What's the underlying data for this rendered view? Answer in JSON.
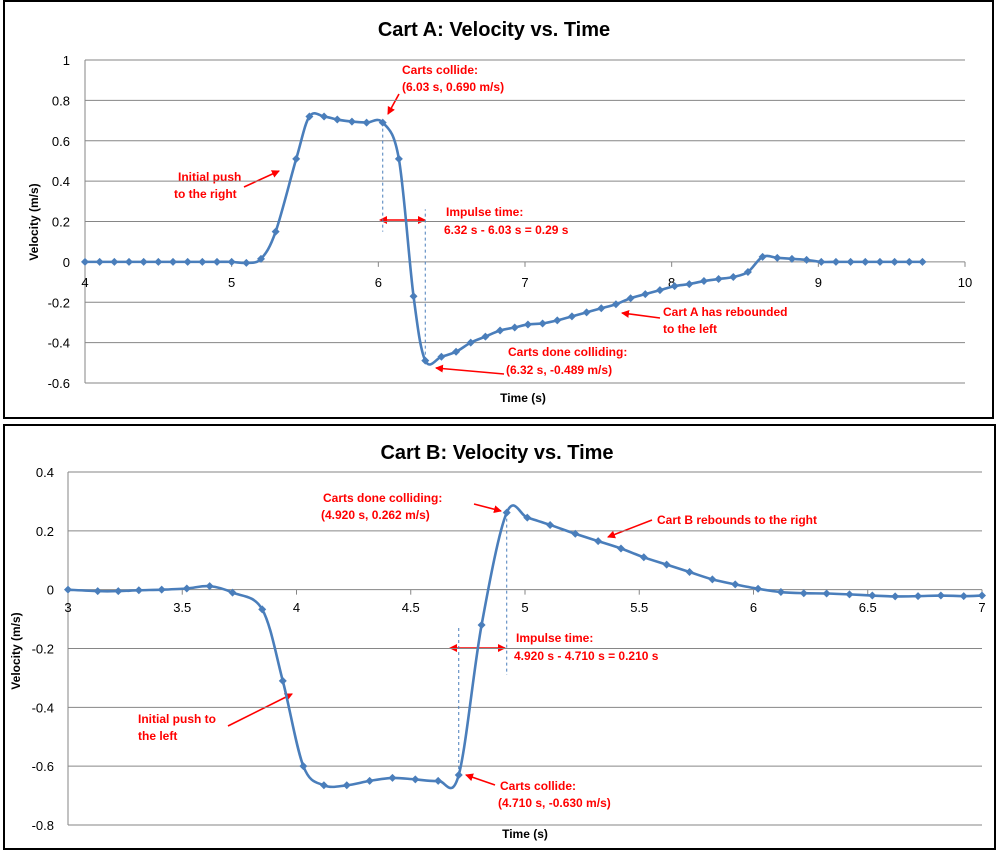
{
  "chart_data": [
    {
      "type": "line",
      "title": "Cart A: Velocity vs. Time",
      "xlabel": "Time (s)",
      "ylabel": "Velocity (m/s)",
      "xlim": [
        4,
        10
      ],
      "ylim": [
        -0.6,
        1
      ],
      "xticks": [
        "4",
        "5",
        "6",
        "7",
        "8",
        "9",
        "10"
      ],
      "yticks": [
        "1",
        "0.8",
        "0.6",
        "0.4",
        "0.2",
        "0",
        "-0.2",
        "-0.4",
        "-0.6"
      ],
      "grid": "horizontal",
      "series_color": "#4a7ebb",
      "marker": "diamond",
      "x": [
        4.0,
        4.1,
        4.2,
        4.3,
        4.4,
        4.5,
        4.6,
        4.7,
        4.8,
        4.9,
        5.0,
        5.1,
        5.2,
        5.3,
        5.44,
        5.53,
        5.63,
        5.72,
        5.82,
        5.92,
        6.03,
        6.14,
        6.24,
        6.32,
        6.43,
        6.53,
        6.63,
        6.73,
        6.83,
        6.93,
        7.02,
        7.12,
        7.22,
        7.32,
        7.42,
        7.52,
        7.62,
        7.72,
        7.82,
        7.92,
        8.02,
        8.12,
        8.22,
        8.32,
        8.42,
        8.52,
        8.62,
        8.72,
        8.82,
        8.92,
        9.02,
        9.12,
        9.22,
        9.32,
        9.42,
        9.52,
        9.62,
        9.71
      ],
      "y": [
        0.0,
        0.0,
        0.0,
        0.0,
        0.0,
        0.0,
        0.0,
        0.0,
        0.0,
        0.0,
        0.0,
        -0.005,
        0.015,
        0.15,
        0.51,
        0.72,
        0.72,
        0.705,
        0.695,
        0.69,
        0.69,
        0.51,
        -0.17,
        -0.489,
        -0.47,
        -0.445,
        -0.4,
        -0.37,
        -0.34,
        -0.325,
        -0.31,
        -0.305,
        -0.29,
        -0.27,
        -0.25,
        -0.23,
        -0.21,
        -0.18,
        -0.16,
        -0.14,
        -0.12,
        -0.11,
        -0.095,
        -0.085,
        -0.075,
        -0.05,
        0.025,
        0.02,
        0.015,
        0.01,
        0.0,
        0.0,
        0.0,
        0.0,
        0.0,
        0.0,
        0.0,
        0.0
      ],
      "annotations": [
        {
          "id": "collide",
          "lines": [
            "Carts collide:",
            "(6.03 s, 0.690 m/s)"
          ]
        },
        {
          "id": "push",
          "lines": [
            "Initial push",
            "to the right"
          ]
        },
        {
          "id": "impulse",
          "lines": [
            "Impulse time:",
            "6.32 s - 6.03 s = 0.29 s"
          ]
        },
        {
          "id": "rebound",
          "lines": [
            "Cart A has rebounded",
            "to the left"
          ]
        },
        {
          "id": "done",
          "lines": [
            "Carts done colliding:",
            "(6.32 s, -0.489 m/s)"
          ]
        }
      ]
    },
    {
      "type": "line",
      "title": "Cart B: Velocity vs. Time",
      "xlabel": "Time (s)",
      "ylabel": "Velocity (m/s)",
      "xlim": [
        3,
        7
      ],
      "ylim": [
        -0.8,
        0.4
      ],
      "xticks": [
        "3",
        "3.5",
        "4",
        "4.5",
        "5",
        "5.5",
        "6",
        "6.5",
        "7"
      ],
      "yticks": [
        "0.4",
        "0.2",
        "0",
        "-0.2",
        "-0.4",
        "-0.6",
        "-0.8"
      ],
      "grid": "horizontal",
      "series_color": "#4a7ebb",
      "marker": "diamond",
      "x": [
        3.0,
        3.13,
        3.22,
        3.31,
        3.41,
        3.52,
        3.62,
        3.72,
        3.85,
        3.94,
        4.03,
        4.12,
        4.22,
        4.32,
        4.42,
        4.52,
        4.62,
        4.71,
        4.81,
        4.92,
        5.01,
        5.11,
        5.22,
        5.32,
        5.42,
        5.52,
        5.62,
        5.72,
        5.82,
        5.92,
        6.02,
        6.12,
        6.22,
        6.32,
        6.42,
        6.52,
        6.62,
        6.72,
        6.82,
        6.92,
        7.0
      ],
      "y": [
        0.0,
        -0.005,
        -0.005,
        -0.002,
        0.0,
        0.004,
        0.012,
        -0.01,
        -0.067,
        -0.31,
        -0.6,
        -0.665,
        -0.665,
        -0.65,
        -0.64,
        -0.645,
        -0.65,
        -0.63,
        -0.12,
        0.262,
        0.245,
        0.22,
        0.19,
        0.165,
        0.14,
        0.11,
        0.085,
        0.06,
        0.035,
        0.018,
        0.003,
        -0.008,
        -0.012,
        -0.013,
        -0.016,
        -0.02,
        -0.023,
        -0.022,
        -0.02,
        -0.022,
        -0.02
      ],
      "annotations": [
        {
          "id": "done",
          "lines": [
            "Carts done colliding:",
            "(4.920 s,  0.262  m/s)"
          ]
        },
        {
          "id": "rebound",
          "lines": [
            "Cart B rebounds to the right"
          ]
        },
        {
          "id": "impulse",
          "lines": [
            "Impulse time:",
            "4.920 s - 4.710  s = 0.210  s"
          ]
        },
        {
          "id": "push",
          "lines": [
            "Initial push to",
            "the left"
          ]
        },
        {
          "id": "collide",
          "lines": [
            "Carts collide:",
            "(4.710 s, -0.630  m/s)"
          ]
        }
      ]
    }
  ]
}
